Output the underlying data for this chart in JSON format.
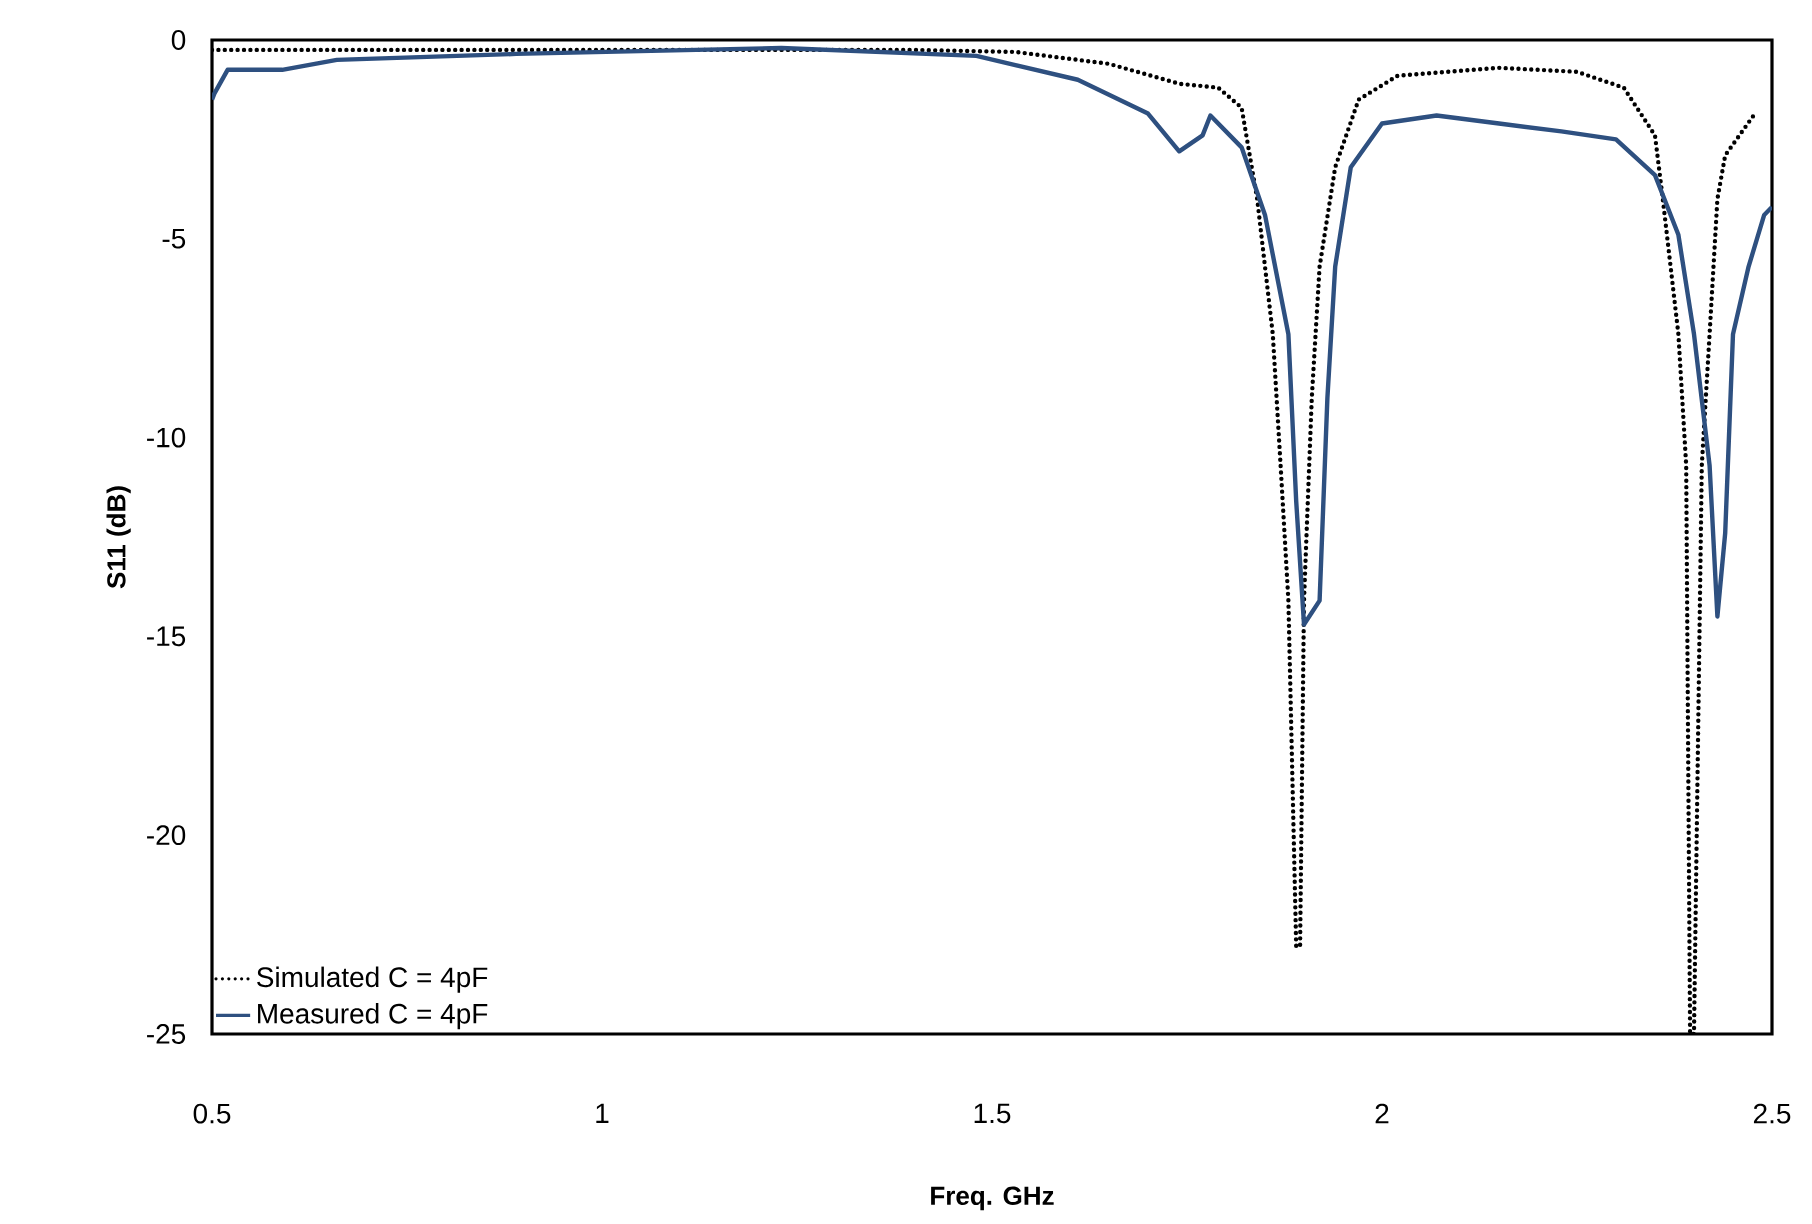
{
  "chart_data": {
    "type": "line",
    "xlabel": "Freq. GHz",
    "ylabel": "S11 (dB)",
    "xlim": [
      0.5,
      2.5
    ],
    "ylim": [
      -25,
      0
    ],
    "xticks": [
      0.5,
      1,
      1.5,
      2,
      2.5
    ],
    "yticks": [
      -25,
      -20,
      -15,
      -10,
      -5,
      0
    ],
    "grid": false,
    "legend": "bottom left",
    "marker": "none",
    "series": [
      {
        "name": "Simulated C = 4pF",
        "color": "#000000",
        "line_style": "dotted",
        "x": [
          0.5,
          0.8,
          1.1,
          1.4,
          1.53,
          1.65,
          1.74,
          1.79,
          1.82,
          1.84,
          1.86,
          1.87,
          1.88,
          1.89,
          1.895,
          1.9,
          1.91,
          1.92,
          1.94,
          1.97,
          2.02,
          2.15,
          2.25,
          2.31,
          2.35,
          2.36,
          2.38,
          2.39,
          2.395,
          2.4,
          2.41,
          2.42,
          2.43,
          2.44,
          2.48
        ],
        "values": [
          -0.25,
          -0.25,
          -0.25,
          -0.25,
          -0.3,
          -0.6,
          -1.1,
          -1.2,
          -1.7,
          -4,
          -7.4,
          -10.7,
          -14.1,
          -22.8,
          -22.8,
          -14.1,
          -9,
          -5.7,
          -3.2,
          -1.5,
          -0.9,
          -0.7,
          -0.8,
          -1.2,
          -2.4,
          -4,
          -7.4,
          -10.7,
          -25,
          -25,
          -10.7,
          -7.4,
          -4,
          -2.9,
          -1.8
        ]
      },
      {
        "name": "Measured C = 4pF",
        "color": "#2e5080",
        "line_style": "solid",
        "x": [
          0.5,
          0.503,
          0.52,
          0.59,
          0.66,
          0.89,
          1.23,
          1.48,
          1.61,
          1.7,
          1.74,
          1.77,
          1.78,
          1.82,
          1.85,
          1.88,
          1.89,
          1.9,
          1.92,
          1.93,
          1.94,
          1.96,
          2.0,
          2.07,
          2.15,
          2.23,
          2.3,
          2.35,
          2.38,
          2.4,
          2.42,
          2.43,
          2.44,
          2.45,
          2.47,
          2.49,
          2.5
        ],
        "values": [
          -1.5,
          -1.35,
          -0.75,
          -0.75,
          -0.5,
          -0.35,
          -0.2,
          -0.4,
          -1.0,
          -1.85,
          -2.8,
          -2.4,
          -1.9,
          -2.7,
          -4.4,
          -7.4,
          -11.6,
          -14.7,
          -14.1,
          -9,
          -5.7,
          -3.2,
          -2.1,
          -1.9,
          -2.1,
          -2.3,
          -2.5,
          -3.4,
          -4.9,
          -7.4,
          -10.7,
          -14.5,
          -12.4,
          -7.4,
          -5.7,
          -4.4,
          -4.2
        ]
      }
    ]
  }
}
